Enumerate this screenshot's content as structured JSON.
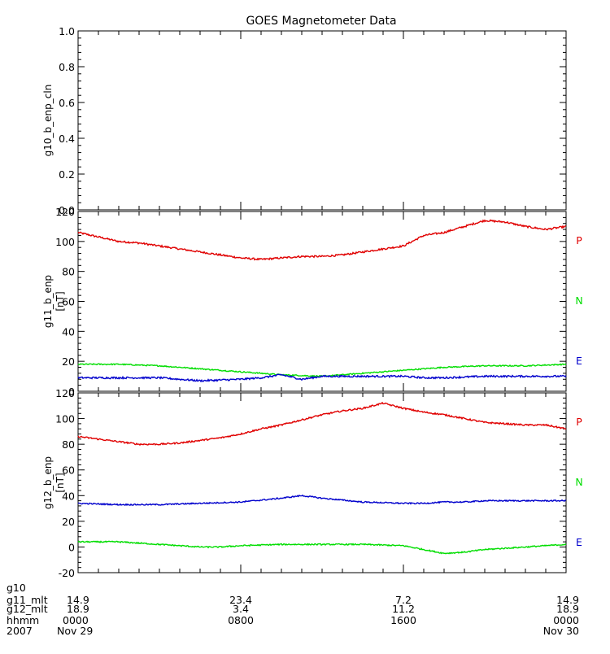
{
  "chart_data": {
    "type": "line",
    "title": "GOES Magnetometer Data",
    "x_range": [
      "2007-11-29 00:00",
      "2007-11-30 00:00"
    ],
    "panels": [
      {
        "ylabel": "g10_b_enp_cln",
        "unit": "",
        "ylim": [
          0,
          1
        ],
        "yticks": [
          "0.0",
          "0.2",
          "0.4",
          "0.6",
          "0.8",
          "1.0"
        ],
        "series": []
      },
      {
        "ylabel": "g11_b_enp",
        "unit": "[nT]",
        "ylim": [
          0,
          120
        ],
        "yticks": [
          "0",
          "20",
          "40",
          "60",
          "80",
          "100",
          "120"
        ],
        "series": [
          {
            "name": "P",
            "color": "#e00000",
            "x": [
              0,
              1,
              2,
              3,
              4,
              5,
              6,
              7,
              8,
              9,
              10,
              11,
              12,
              13,
              14,
              15,
              16,
              17,
              18,
              19,
              20,
              21,
              22,
              23,
              24
            ],
            "y": [
              106,
              103,
              100,
              99,
              97,
              95,
              93,
              91,
              89,
              88,
              89,
              90,
              90,
              91,
              93,
              95,
              97,
              104,
              106,
              110,
              114,
              113,
              110,
              108,
              110
            ],
            "noise": 0.6
          },
          {
            "name": "N",
            "color": "#00dd00",
            "x": [
              0,
              2,
              4,
              6,
              8,
              10,
              12,
              14,
              16,
              18,
              20,
              22,
              24
            ],
            "y": [
              18,
              18,
              17,
              15,
              13,
              11,
              10,
              12,
              14,
              16,
              17,
              17,
              18
            ],
            "noise": 0.4
          },
          {
            "name": "E",
            "color": "#0000cc",
            "x": [
              0,
              2,
              4,
              6,
              8,
              9,
              10,
              11,
              12,
              14,
              16,
              17,
              18,
              20,
              22,
              24
            ],
            "y": [
              9,
              9,
              9,
              7,
              8,
              9,
              11,
              8,
              10,
              10,
              10,
              9,
              9,
              10,
              10,
              10
            ],
            "noise": 0.6
          }
        ]
      },
      {
        "ylabel": "g12_b_enp",
        "unit": "[nT]",
        "ylim": [
          -20,
          120
        ],
        "yticks": [
          "-20",
          "0",
          "20",
          "40",
          "60",
          "80",
          "100",
          "120"
        ],
        "series": [
          {
            "name": "P",
            "color": "#e00000",
            "x": [
              0,
              1,
              2,
              3,
              4,
              5,
              6,
              7,
              8,
              9,
              10,
              11,
              12,
              13,
              14,
              15,
              16,
              17,
              18,
              19,
              20,
              21,
              22,
              23,
              24
            ],
            "y": [
              86,
              84,
              82,
              80,
              80,
              81,
              83,
              85,
              88,
              92,
              95,
              99,
              103,
              106,
              108,
              112,
              108,
              105,
              103,
              100,
              97,
              96,
              95,
              95,
              92
            ],
            "noise": 0.6
          },
          {
            "name": "N",
            "color": "#00dd00",
            "x": [
              0,
              2,
              4,
              6,
              7,
              8,
              10,
              12,
              14,
              16,
              17,
              18,
              19,
              20,
              22,
              24
            ],
            "y": [
              4,
              4,
              2,
              0,
              0,
              1,
              2,
              2,
              2,
              1,
              -2,
              -5,
              -4,
              -2,
              0,
              2
            ],
            "noise": 0.5
          },
          {
            "name": "E",
            "color": "#0000cc",
            "x": [
              0,
              2,
              4,
              6,
              8,
              10,
              11,
              12,
              14,
              16,
              17,
              18,
              19,
              20,
              22,
              24
            ],
            "y": [
              34,
              33,
              33,
              34,
              35,
              38,
              40,
              38,
              35,
              34,
              34,
              35,
              35,
              36,
              36,
              36
            ],
            "noise": 0.5
          }
        ]
      }
    ],
    "legend": [
      "P",
      "N",
      "E"
    ],
    "footer": {
      "labels": [
        "g10",
        "g11_mlt",
        "g12_mlt",
        "hhmm",
        "2007"
      ],
      "columns": [
        {
          "x": 0,
          "g11_mlt": "14.9",
          "g12_mlt": "18.9",
          "hhmm": "0000",
          "date": "Nov 29"
        },
        {
          "x": 8,
          "g11_mlt": "23.4",
          "g12_mlt": "3.4",
          "hhmm": "0800",
          "date": ""
        },
        {
          "x": 16,
          "g11_mlt": "7.2",
          "g12_mlt": "11.2",
          "hhmm": "1600",
          "date": ""
        },
        {
          "x": 24,
          "g11_mlt": "14.9",
          "g12_mlt": "18.9",
          "hhmm": "0000",
          "date": "Nov 30"
        }
      ]
    }
  }
}
